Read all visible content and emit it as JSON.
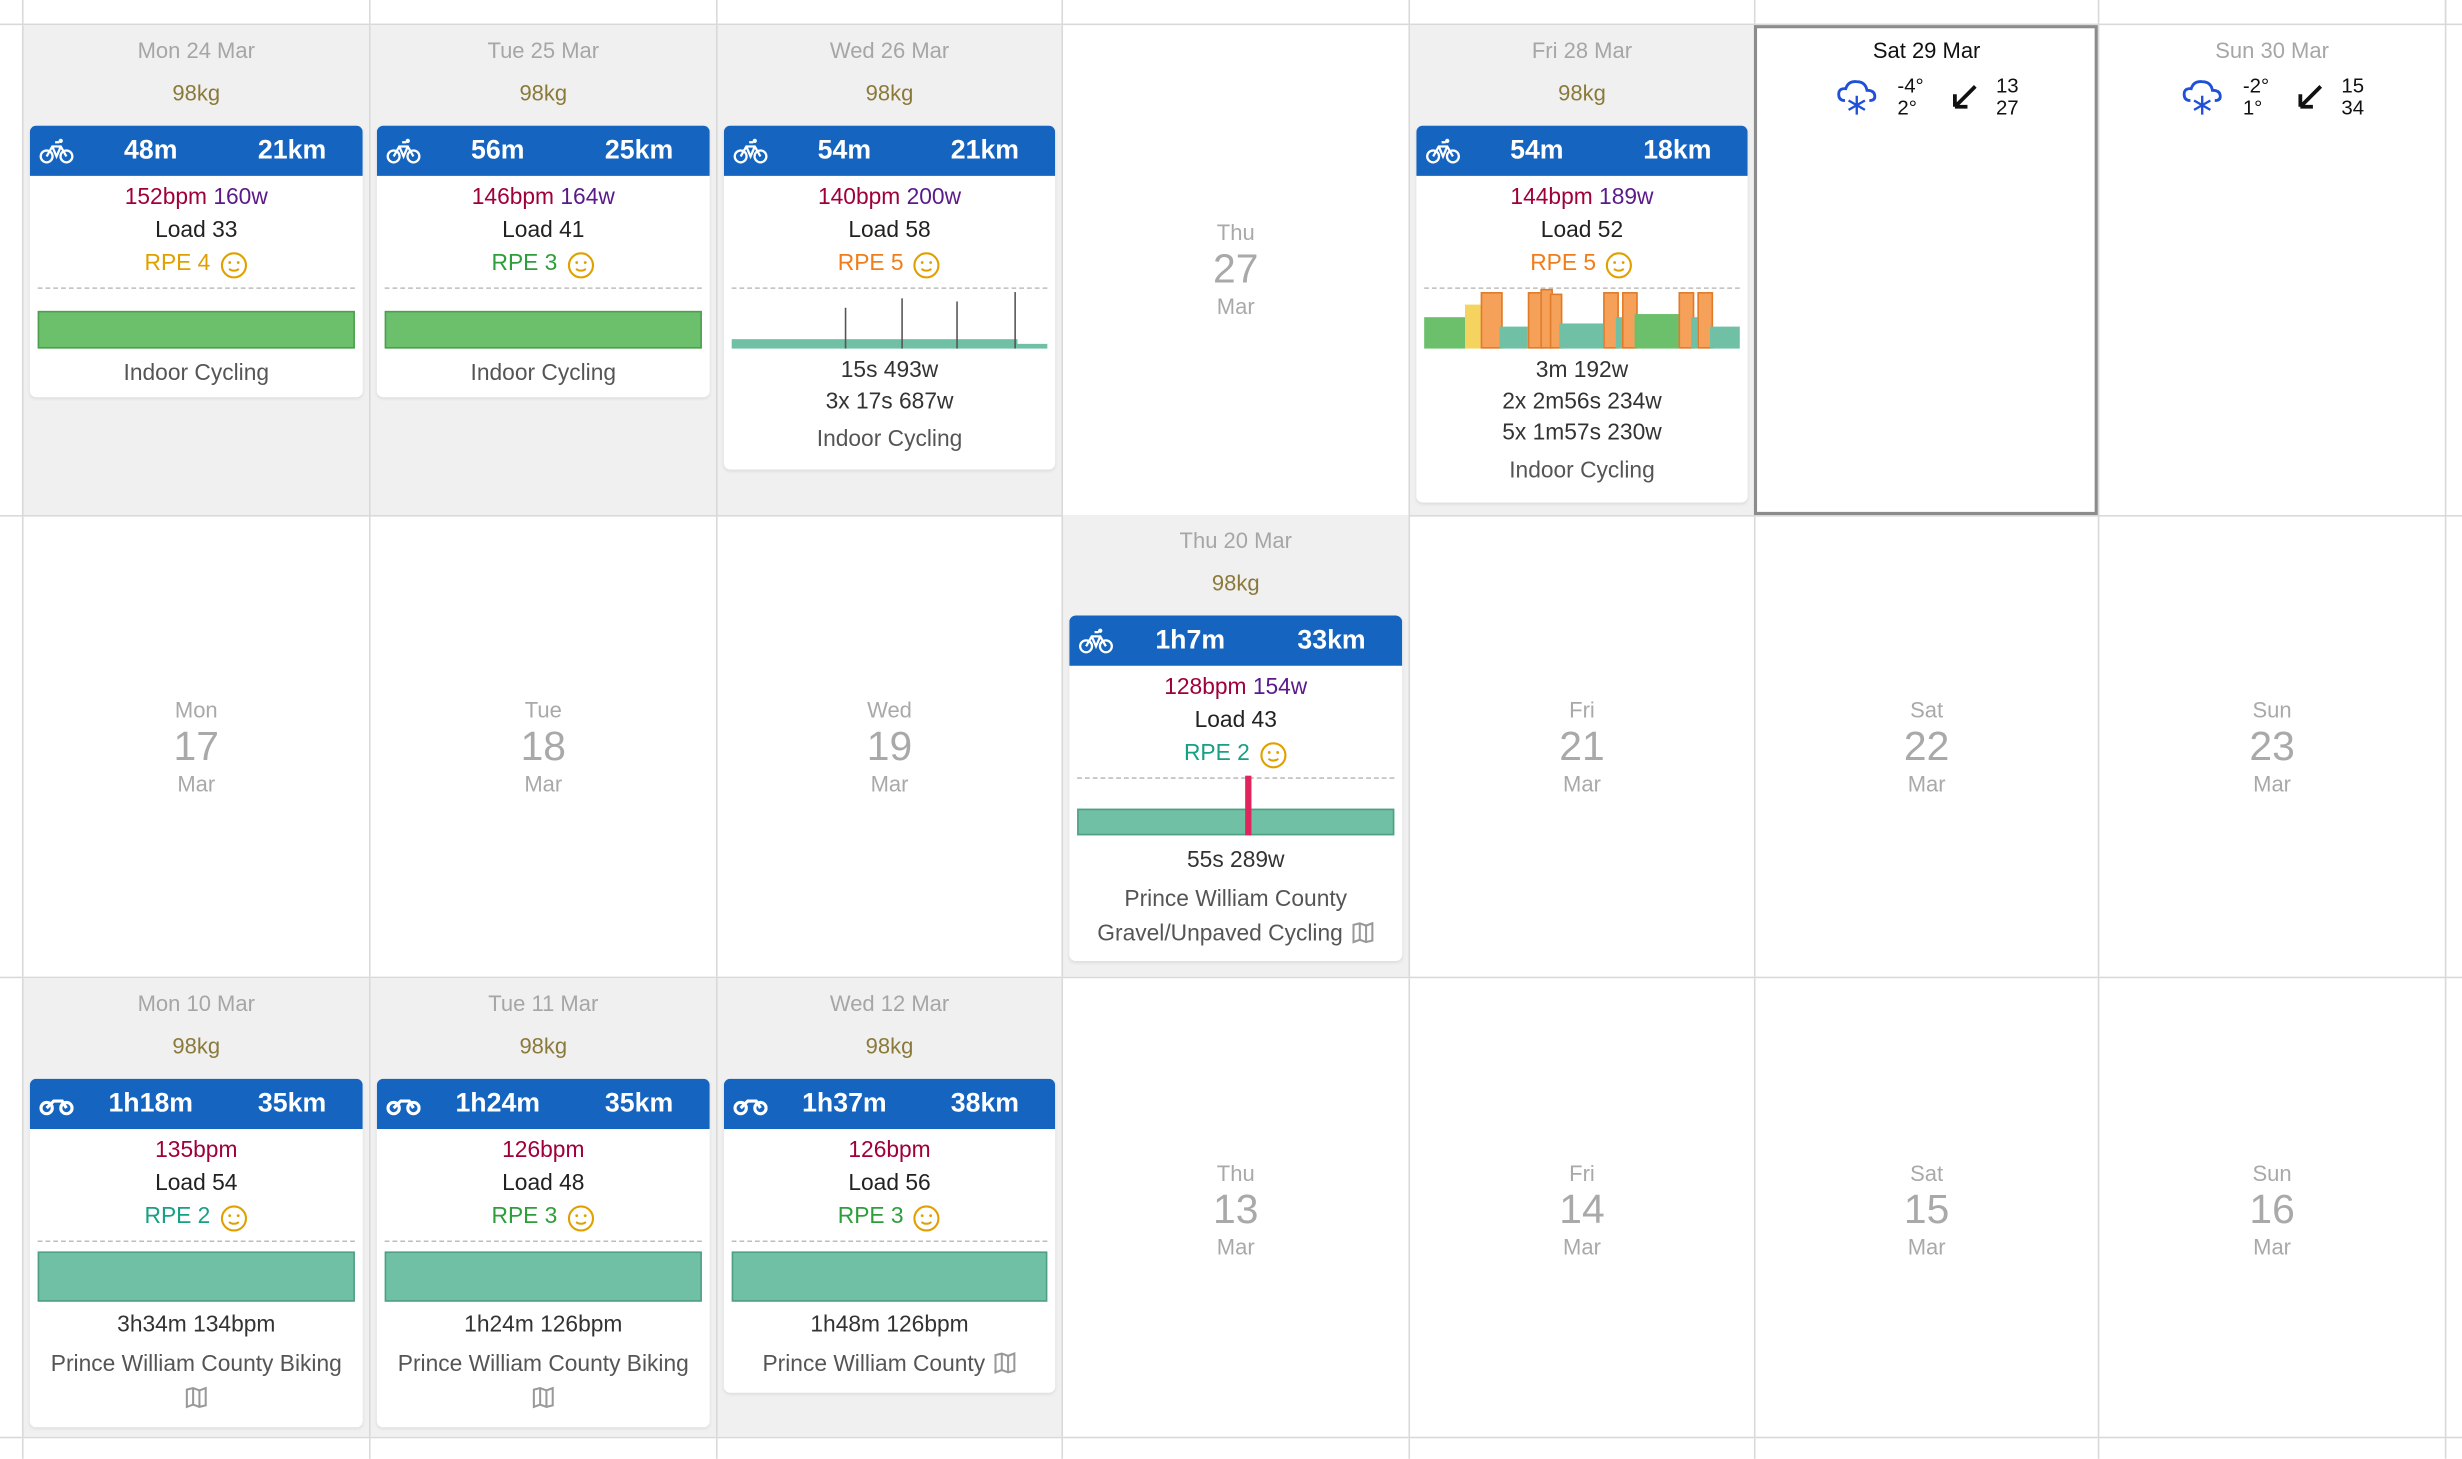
{
  "week1": {
    "mon": {
      "head": "Mon 24 Mar",
      "weight": "98kg",
      "dur": "48m",
      "dist": "21km",
      "hr": "152bpm",
      "pw": "160w",
      "load": "Load 33",
      "rpe": "RPE 4",
      "sport": "Indoor Cycling"
    },
    "tue": {
      "head": "Tue 25 Mar",
      "weight": "98kg",
      "dur": "56m",
      "dist": "25km",
      "hr": "146bpm",
      "pw": "164w",
      "load": "Load 41",
      "rpe": "RPE 3",
      "sport": "Indoor Cycling"
    },
    "wed": {
      "head": "Wed 26 Mar",
      "weight": "98kg",
      "dur": "54m",
      "dist": "21km",
      "hr": "140bpm",
      "pw": "200w",
      "load": "Load 58",
      "rpe": "RPE 5",
      "int1": "15s 493w",
      "int2": "3x 17s 687w",
      "sport": "Indoor Cycling"
    },
    "thu": {
      "dow": "Thu",
      "num": "27",
      "mon": "Mar"
    },
    "fri": {
      "head": "Fri 28 Mar",
      "weight": "98kg",
      "dur": "54m",
      "dist": "18km",
      "hr": "144bpm",
      "pw": "189w",
      "load": "Load 52",
      "rpe": "RPE 5",
      "int1": "3m 192w",
      "int2": "2x 2m56s 234w",
      "int3": "5x 1m57s 230w",
      "sport": "Indoor Cycling"
    },
    "sat": {
      "head": "Sat 29 Mar",
      "tlow": "-4°",
      "thigh": "2°",
      "w1": "13",
      "w2": "27"
    },
    "sun": {
      "head": "Sun 30 Mar",
      "tlow": "-2°",
      "thigh": "1°",
      "w1": "15",
      "w2": "34"
    }
  },
  "week2": {
    "mon": {
      "dow": "Mon",
      "num": "17",
      "mon": "Mar"
    },
    "tue": {
      "dow": "Tue",
      "num": "18",
      "mon": "Mar"
    },
    "wed": {
      "dow": "Wed",
      "num": "19",
      "mon": "Mar"
    },
    "thu": {
      "head": "Thu 20 Mar",
      "weight": "98kg",
      "dur": "1h7m",
      "dist": "33km",
      "hr": "128bpm",
      "pw": "154w",
      "load": "Load 43",
      "rpe": "RPE 2",
      "int1": "55s 289w",
      "sport1": "Prince William County",
      "sport2": "Gravel/Unpaved Cycling"
    },
    "fri": {
      "dow": "Fri",
      "num": "21",
      "mon": "Mar"
    },
    "sat": {
      "dow": "Sat",
      "num": "22",
      "mon": "Mar"
    },
    "sun": {
      "dow": "Sun",
      "num": "23",
      "mon": "Mar"
    }
  },
  "week3": {
    "mon": {
      "head": "Mon 10 Mar",
      "weight": "98kg",
      "dur": "1h18m",
      "dist": "35km",
      "hr": "135bpm",
      "load": "Load 54",
      "rpe": "RPE 2",
      "sum": "3h34m 134bpm",
      "sport": "Prince William County Biking"
    },
    "tue": {
      "head": "Tue 11 Mar",
      "weight": "98kg",
      "dur": "1h24m",
      "dist": "35km",
      "hr": "126bpm",
      "load": "Load 48",
      "rpe": "RPE 3",
      "sum": "1h24m 126bpm",
      "sport": "Prince William County Biking"
    },
    "wed": {
      "head": "Wed 12 Mar",
      "weight": "98kg",
      "dur": "1h37m",
      "dist": "38km",
      "hr": "126bpm",
      "load": "Load 56",
      "rpe": "RPE 3",
      "sum": "1h48m 126bpm",
      "sport": "Prince William County"
    },
    "thu": {
      "dow": "Thu",
      "num": "13",
      "mon": "Mar"
    },
    "fri": {
      "dow": "Fri",
      "num": "14",
      "mon": "Mar"
    },
    "sat": {
      "dow": "Sat",
      "num": "15",
      "mon": "Mar"
    },
    "sun": {
      "dow": "Sun",
      "num": "16",
      "mon": "Mar"
    }
  },
  "colors": {
    "header": "#1565c0",
    "hr": "#a0003a",
    "power": "#5a1a8a",
    "rpe2": "#16a085",
    "rpe3": "#2e9e3b",
    "rpe4": "#e0a100",
    "rpe5": "#f07d1a",
    "zone_green": "#6cc06c",
    "zone_teal": "#6fc0a4",
    "zone_orange": "#f6a15a"
  },
  "icons": [
    "bike-icon",
    "smiley-icon",
    "snow-cloud-icon",
    "wind-arrow-icon",
    "map-icon"
  ]
}
